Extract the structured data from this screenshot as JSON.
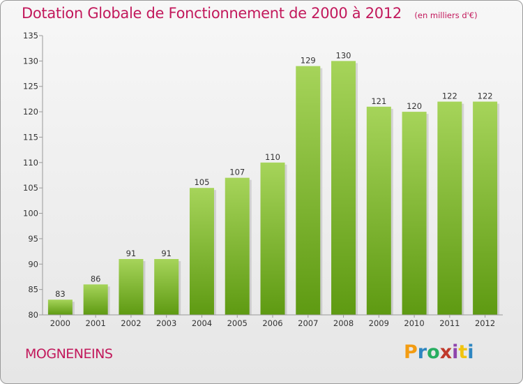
{
  "header": {
    "title": "Dotation Globale de Fonctionnement de 2000 à 2012",
    "subtitle": "(en milliers d'€)"
  },
  "footer": {
    "commune": "MOGNENEINS",
    "logo_letters": [
      "P",
      "r",
      "o",
      "x",
      "i",
      "t",
      "i"
    ],
    "logo_colors": [
      "#f39c12",
      "#2e86c1",
      "#27ae60",
      "#c0392b",
      "#8e44ad",
      "#f1c40f",
      "#2e86c1"
    ]
  },
  "chart_data": {
    "type": "bar",
    "categories": [
      "2000",
      "2001",
      "2002",
      "2003",
      "2004",
      "2005",
      "2006",
      "2007",
      "2008",
      "2009",
      "2010",
      "2011",
      "2012"
    ],
    "values": [
      83,
      86,
      91,
      91,
      105,
      107,
      110,
      129,
      130,
      121,
      120,
      122,
      122
    ],
    "ylim": [
      80,
      135
    ],
    "yticks": [
      80,
      85,
      90,
      95,
      100,
      105,
      110,
      115,
      120,
      125,
      130,
      135
    ],
    "grid": false,
    "colors": {
      "bar_top": "#a6d45a",
      "bar_bottom": "#5e9a12",
      "axis": "#999999",
      "text": "#333333"
    }
  }
}
